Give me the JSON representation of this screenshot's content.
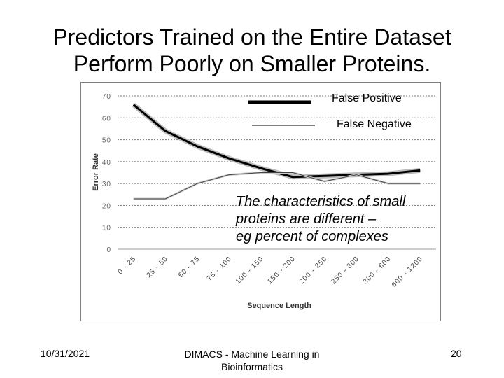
{
  "slide": {
    "title_line1": "Predictors Trained on the Entire Dataset",
    "title_line2": "Perform Poorly on Smaller Proteins.",
    "callout_line1": "The characteristics of small",
    "callout_line2": "proteins are different –",
    "callout_line3": "eg percent of complexes",
    "footer_date": "10/31/2021",
    "footer_center_line1": "DIMACS - Machine Learning in",
    "footer_center_line2": "Bioinformatics",
    "footer_page": "20"
  },
  "chart_data": {
    "type": "line",
    "xlabel": "Sequence Length",
    "ylabel": "Error Rate",
    "categories": [
      "0 - 25",
      "25 - 50",
      "50 - 75",
      "75 - 100",
      "100 - 150",
      "150 - 200",
      "200 - 250",
      "250 - 300",
      "300 - 600",
      "600 - 1200"
    ],
    "ylim": [
      0,
      70
    ],
    "yticks": [
      "0",
      "10",
      "20",
      "30",
      "40",
      "50",
      "60",
      "70"
    ],
    "grid": true,
    "legend_position": "top-right",
    "series": [
      {
        "name": "False Positive",
        "values": [
          66,
          54,
          47,
          41.5,
          37,
          33,
          33.5,
          34,
          34.5,
          36
        ],
        "color": "#000000"
      },
      {
        "name": "False Negative",
        "values": [
          23,
          23,
          30,
          34,
          35,
          35,
          31,
          34,
          30,
          30
        ],
        "color": "#404040"
      }
    ]
  }
}
